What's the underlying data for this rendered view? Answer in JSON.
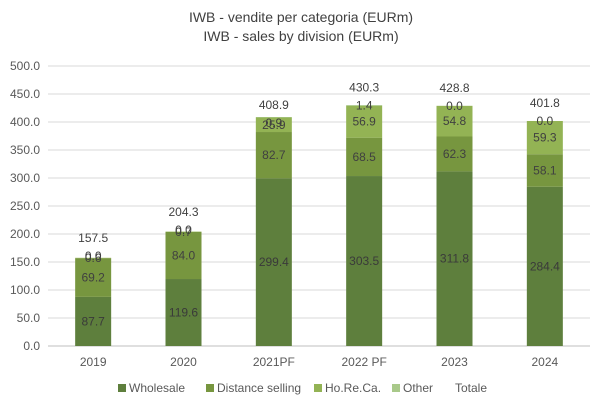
{
  "chart_data": {
    "type": "bar",
    "stacked": true,
    "title": "IWB - vendite per categoria (EURm)",
    "subtitle": "IWB - sales by division (EURm)",
    "xlabel": "",
    "ylabel": "",
    "ylim": [
      0,
      500
    ],
    "yticks": [
      "0.0",
      "50.0",
      "100.0",
      "150.0",
      "200.0",
      "250.0",
      "300.0",
      "350.0",
      "400.0",
      "450.0",
      "500.0"
    ],
    "grid": true,
    "legend_position": "bottom",
    "categories": [
      "2019",
      "2020",
      "2021PF",
      "2022 PF",
      "2023",
      "2024"
    ],
    "series": [
      {
        "name": "Wholesale",
        "color": "#5e7f3d",
        "values": [
          87.7,
          119.6,
          299.4,
          303.5,
          311.8,
          284.4
        ]
      },
      {
        "name": "Distance selling",
        "color": "#77963f",
        "values": [
          69.2,
          84.0,
          82.7,
          68.5,
          62.3,
          58.1
        ]
      },
      {
        "name": "Ho.Re.Ca.",
        "color": "#93b354",
        "values": [
          0.6,
          0.7,
          25.9,
          56.9,
          54.8,
          59.3
        ]
      },
      {
        "name": "Other",
        "color": "#a9c98a",
        "values": [
          0.0,
          0.0,
          0.9,
          1.4,
          0.0,
          0.0
        ]
      }
    ],
    "totals": {
      "name": "Totale",
      "values": [
        157.5,
        204.3,
        408.9,
        430.3,
        428.8,
        401.8
      ]
    },
    "value_labels": [
      [
        "87.7",
        "69.2",
        "0.6",
        "0.0"
      ],
      [
        "119.6",
        "84.0",
        "0.7",
        "0.0"
      ],
      [
        "299.4",
        "82.7",
        "25.9",
        "0.9"
      ],
      [
        "303.5",
        "68.5",
        "56.9",
        "1.4"
      ],
      [
        "311.8",
        "62.3",
        "54.8",
        "0.0"
      ],
      [
        "284.4",
        "58.1",
        "59.3",
        "0.0"
      ]
    ],
    "total_labels": [
      "157.5",
      "204.3",
      "408.9",
      "430.3",
      "428.8",
      "401.8"
    ]
  }
}
